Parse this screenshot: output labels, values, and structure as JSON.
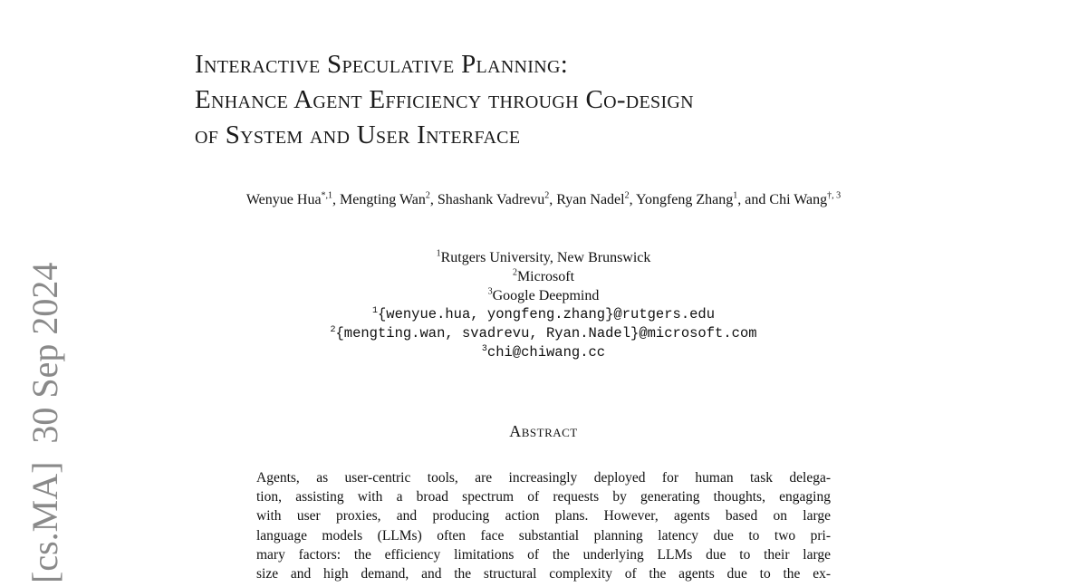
{
  "arxiv_stamp": "[cs.MA]  30 Sep 2024",
  "title_lines": [
    "Interactive Speculative Planning:",
    "Enhance Agent Efficiency through Co-design",
    "of System and User Interface"
  ],
  "authors": [
    {
      "name": "Wenyue Hua",
      "sup": "*,1"
    },
    {
      "name": "Mengting Wan",
      "sup": "2"
    },
    {
      "name": "Shashank Vadrevu",
      "sup": "2"
    },
    {
      "name": "Ryan Nadel",
      "sup": "2"
    },
    {
      "name": "Yongfeng Zhang",
      "sup": "1"
    },
    {
      "name": "Chi Wang",
      "sup": "†, 3"
    }
  ],
  "author_conj": "and",
  "affiliations": [
    {
      "sup": "1",
      "text": "Rutgers University, New Brunswick"
    },
    {
      "sup": "2",
      "text": "Microsoft"
    },
    {
      "sup": "3",
      "text": "Google Deepmind"
    }
  ],
  "emails": [
    {
      "sup": "1",
      "text": "{wenyue.hua, yongfeng.zhang}@rutgers.edu"
    },
    {
      "sup": "2",
      "text": "{mengting.wan, svadrevu, Ryan.Nadel}@microsoft.com"
    },
    {
      "sup": "3",
      "text": "chi@chiwang.cc"
    }
  ],
  "abstract_heading": "Abstract",
  "abstract_lines": [
    "Agents, as user-centric tools, are increasingly deployed for human task delega-",
    "tion, assisting with a broad spectrum of requests by generating thoughts, engaging",
    "with user proxies, and producing action plans.  However, agents based on large",
    "language models (LLMs) often face substantial planning latency due to two pri-",
    "mary factors: the efficiency limitations of the underlying LLMs due to their large",
    "size and high demand, and the structural complexity of the agents due to the ex-"
  ]
}
